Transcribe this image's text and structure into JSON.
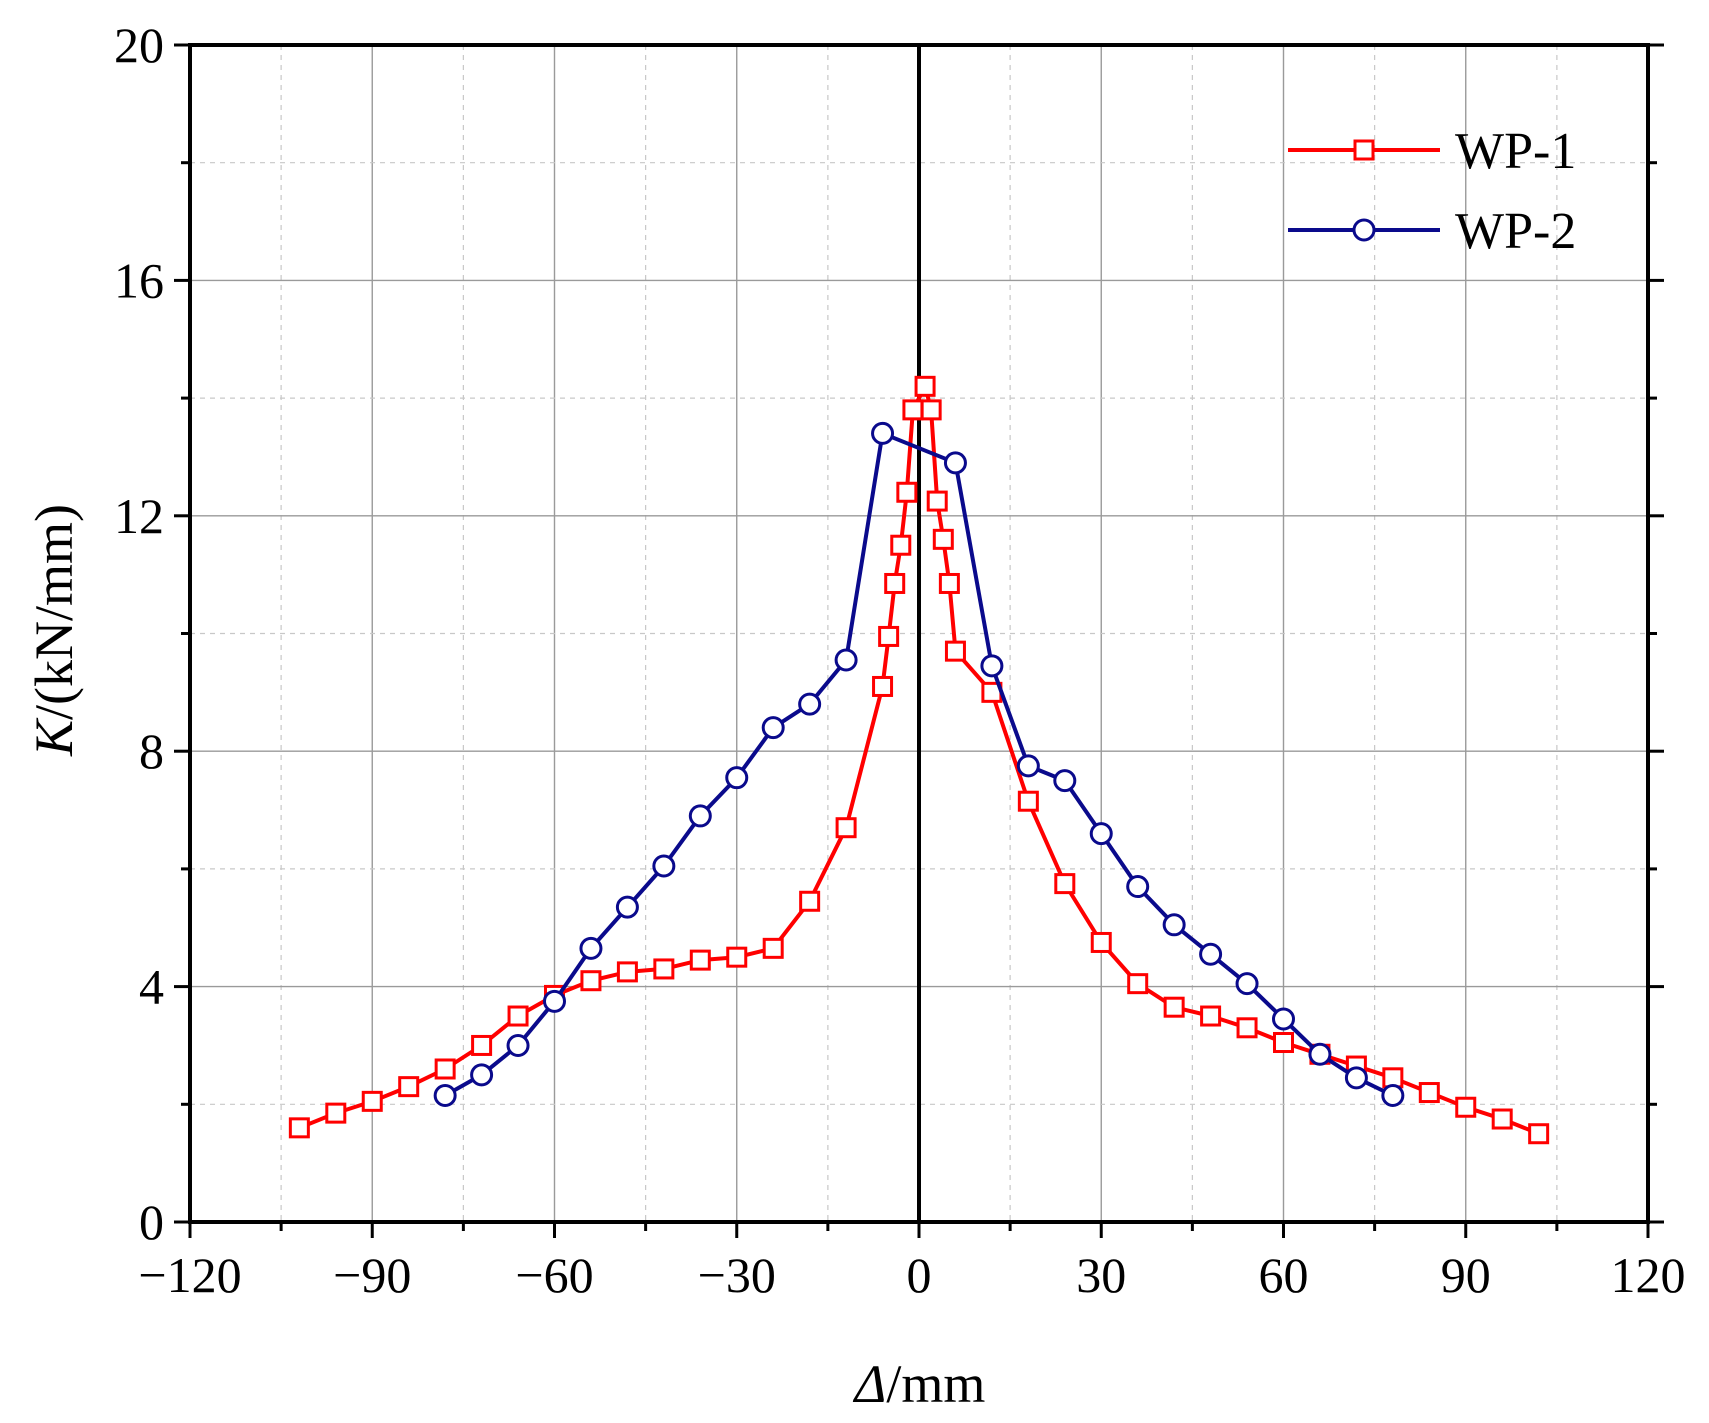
{
  "chart_data": {
    "type": "line",
    "title": "",
    "xlabel": {
      "symbol": "Δ",
      "unit": "/mm"
    },
    "ylabel": {
      "symbol": "K",
      "unit": "/(kN/mm)"
    },
    "xlim": [
      -120,
      120
    ],
    "ylim": [
      0,
      20
    ],
    "xticks": [
      -120,
      -90,
      -60,
      -30,
      0,
      30,
      60,
      90,
      120
    ],
    "xtick_labels": [
      "−120",
      "−90",
      "−60",
      "−30",
      "0",
      "30",
      "60",
      "90",
      "120"
    ],
    "yticks": [
      0,
      4,
      8,
      12,
      16,
      20
    ],
    "ytick_labels": [
      "0",
      "4",
      "8",
      "12",
      "16",
      "20"
    ],
    "grid": true,
    "legend_position": "top-right",
    "series": [
      {
        "name": "WP-1",
        "color": "#ff0000",
        "marker": "square",
        "x": [
          -102,
          -96,
          -90,
          -84,
          -78,
          -72,
          -66,
          -60,
          -54,
          -48,
          -42,
          -36,
          -30,
          -24,
          -18,
          -12,
          -6,
          -5,
          -4,
          -3,
          -2,
          -1,
          1,
          2,
          3,
          4,
          5,
          6,
          12,
          18,
          24,
          30,
          36,
          42,
          48,
          54,
          60,
          66,
          72,
          78,
          84,
          90,
          96,
          102
        ],
        "y": [
          1.6,
          1.85,
          2.05,
          2.3,
          2.6,
          3.0,
          3.5,
          3.85,
          4.1,
          4.25,
          4.3,
          4.45,
          4.5,
          4.65,
          5.45,
          6.7,
          9.1,
          9.95,
          10.85,
          11.5,
          12.4,
          13.8,
          14.2,
          13.8,
          12.25,
          11.6,
          10.85,
          9.7,
          9.0,
          7.15,
          5.75,
          4.75,
          4.05,
          3.65,
          3.5,
          3.3,
          3.05,
          2.85,
          2.65,
          2.45,
          2.2,
          1.95,
          1.75,
          1.5
        ]
      },
      {
        "name": "WP-2",
        "color": "#0a0a8c",
        "marker": "circle",
        "x": [
          -78,
          -72,
          -66,
          -60,
          -54,
          -48,
          -42,
          -36,
          -30,
          -24,
          -18,
          -12,
          -6,
          6,
          12,
          18,
          24,
          30,
          36,
          42,
          48,
          54,
          60,
          66,
          72,
          78
        ],
        "y": [
          2.15,
          2.5,
          3.0,
          3.75,
          4.65,
          5.35,
          6.05,
          6.9,
          7.55,
          8.4,
          8.8,
          9.55,
          13.4,
          12.9,
          9.45,
          7.75,
          7.5,
          6.6,
          5.7,
          5.05,
          4.55,
          4.05,
          3.45,
          2.85,
          2.45,
          2.15
        ]
      }
    ]
  }
}
